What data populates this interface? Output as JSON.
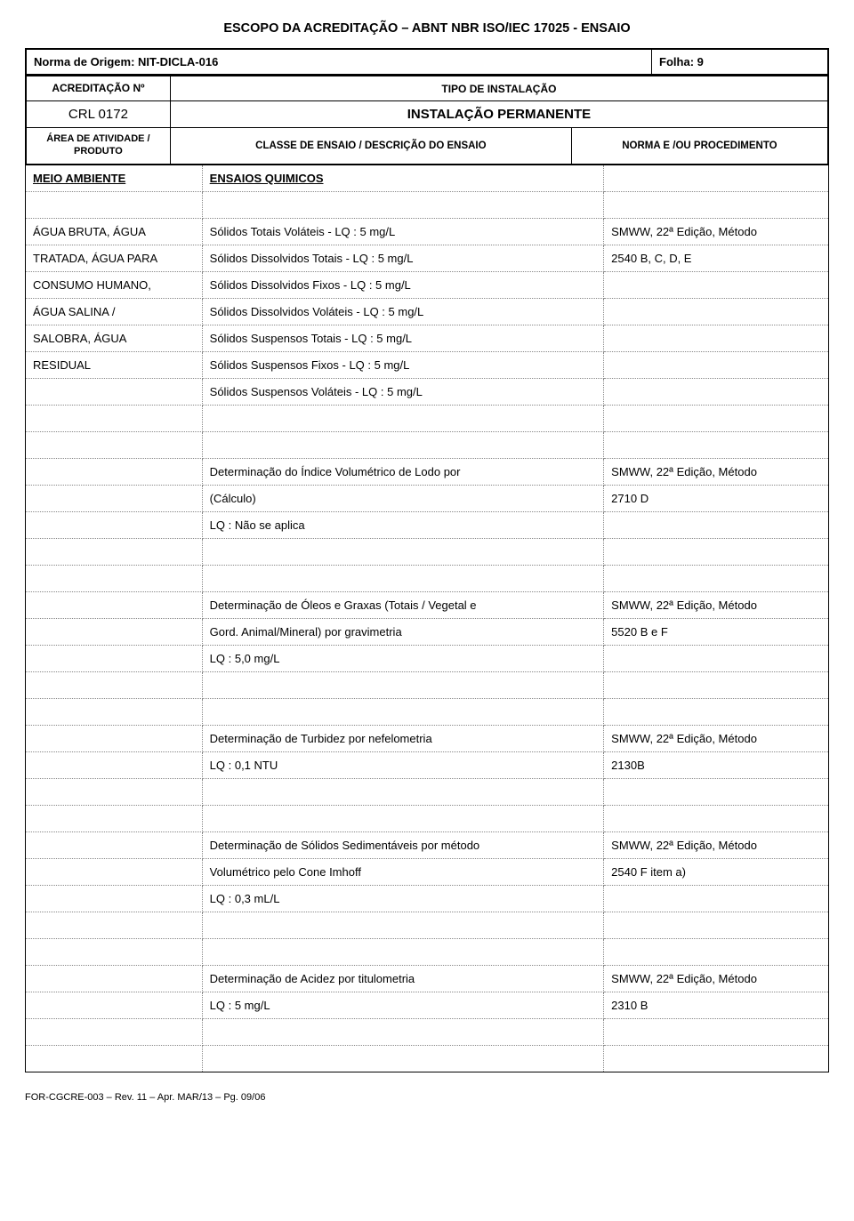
{
  "doc_title": "ESCOPO DA ACREDITAÇÃO – ABNT NBR ISO/IEC 17025 - ENSAIO",
  "norma_origem_label": "Norma de Origem: ",
  "norma_origem_value": "NIT-DICLA-016",
  "folha_label": "Folha: ",
  "folha_value": "9",
  "acred_no_label": "ACREDITAÇÃO Nº",
  "tipo_instalacao_label": "TIPO DE INSTALAÇÃO",
  "crl": "CRL 0172",
  "instalacao": "INSTALAÇÃO PERMANENTE",
  "area_label_l1": "ÁREA DE ATIVIDADE /",
  "area_label_l2": "PRODUTO",
  "classe_label": "CLASSE DE ENSAIO / DESCRIÇÃO DO ENSAIO",
  "norma_label": "NORMA E /OU PROCEDIMENTO",
  "rows": [
    {
      "c1": "MEIO AMBIENTE",
      "c2": "ENSAIOS QUIMICOS",
      "c3": "",
      "c1_under": true,
      "c2_under": true
    },
    {
      "c1": "",
      "c2": "",
      "c3": ""
    },
    {
      "c1": "ÁGUA BRUTA, ÁGUA",
      "c2": "Sólidos Totais Voláteis - LQ : 5 mg/L",
      "c3": "SMWW, 22ª Edição, Método"
    },
    {
      "c1": "TRATADA, ÁGUA PARA",
      "c2": "Sólidos Dissolvidos Totais - LQ : 5 mg/L",
      "c3": "2540 B, C, D, E"
    },
    {
      "c1": "CONSUMO HUMANO,",
      "c2": "Sólidos Dissolvidos Fixos - LQ : 5 mg/L",
      "c3": ""
    },
    {
      "c1": "ÁGUA SALINA /",
      "c2": "Sólidos Dissolvidos Voláteis - LQ : 5 mg/L",
      "c3": ""
    },
    {
      "c1": "SALOBRA, ÁGUA",
      "c2": "Sólidos Suspensos Totais - LQ : 5 mg/L",
      "c3": ""
    },
    {
      "c1": "RESIDUAL",
      "c2": "Sólidos Suspensos Fixos - LQ : 5 mg/L",
      "c3": ""
    },
    {
      "c1": "",
      "c2": "Sólidos Suspensos Voláteis - LQ : 5 mg/L",
      "c3": ""
    },
    {
      "c1": "",
      "c2": "",
      "c3": ""
    },
    {
      "c1": "",
      "c2": "",
      "c3": ""
    },
    {
      "c1": "",
      "c2": "Determinação do Índice Volumétrico de Lodo por",
      "c3": "SMWW, 22ª Edição, Método"
    },
    {
      "c1": "",
      "c2": "(Cálculo)",
      "c3": "2710 D"
    },
    {
      "c1": "",
      "c2": " LQ : Não se aplica",
      "c3": ""
    },
    {
      "c1": "",
      "c2": "",
      "c3": ""
    },
    {
      "c1": "",
      "c2": "",
      "c3": ""
    },
    {
      "c1": "",
      "c2": "Determinação de Óleos e Graxas (Totais / Vegetal e",
      "c3": "SMWW, 22ª Edição, Método"
    },
    {
      "c1": "",
      "c2": "Gord. Animal/Mineral) por gravimetria",
      "c3": "5520 B e F"
    },
    {
      "c1": "",
      "c2": "LQ : 5,0 mg/L",
      "c3": ""
    },
    {
      "c1": "",
      "c2": "",
      "c3": ""
    },
    {
      "c1": "",
      "c2": "",
      "c3": ""
    },
    {
      "c1": "",
      "c2": "Determinação de Turbidez por nefelometria",
      "c3": "SMWW, 22ª Edição, Método"
    },
    {
      "c1": "",
      "c2": "LQ : 0,1 NTU",
      "c3": "2130B"
    },
    {
      "c1": "",
      "c2": "",
      "c3": ""
    },
    {
      "c1": "",
      "c2": "",
      "c3": ""
    },
    {
      "c1": "",
      "c2": "Determinação de Sólidos Sedimentáveis por método",
      "c3": "SMWW, 22ª Edição, Método"
    },
    {
      "c1": "",
      "c2": "Volumétrico pelo Cone Imhoff",
      "c3": "2540 F item a)"
    },
    {
      "c1": "",
      "c2": "LQ : 0,3 mL/L",
      "c3": ""
    },
    {
      "c1": "",
      "c2": "",
      "c3": ""
    },
    {
      "c1": "",
      "c2": "",
      "c3": ""
    },
    {
      "c1": "",
      "c2": "Determinação de Acidez por titulometria",
      "c3": "SMWW, 22ª Edição, Método"
    },
    {
      "c1": "",
      "c2": "LQ : 5 mg/L",
      "c3": "2310 B"
    },
    {
      "c1": "",
      "c2": "",
      "c3": ""
    },
    {
      "c1": "",
      "c2": "",
      "c3": ""
    }
  ],
  "footer": "FOR-CGCRE-003 – Rev. 11 – Apr. MAR/13 – Pg. 09/06"
}
